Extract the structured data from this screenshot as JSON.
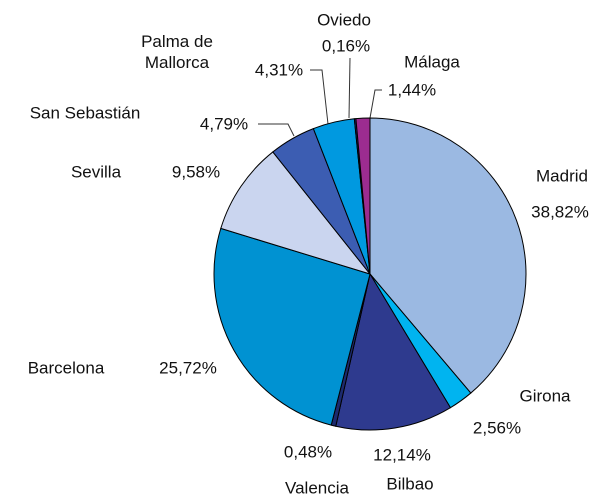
{
  "chart_data": {
    "type": "pie",
    "categories": [
      "Madrid",
      "Girona",
      "Bilbao",
      "Valencia",
      "Barcelona",
      "Sevilla",
      "San Sebastián",
      "Palma de Mallorca",
      "Oviedo",
      "Málaga"
    ],
    "values": [
      38.82,
      2.56,
      12.14,
      0.48,
      25.72,
      9.58,
      4.79,
      4.31,
      0.16,
      1.44
    ],
    "value_labels": [
      "38,82%",
      "2,56%",
      "12,14%",
      "0,48%",
      "25,72%",
      "9,58%",
      "4,79%",
      "4,31%",
      "0,16%",
      "1,44%"
    ],
    "colors": [
      "#9bb9e2",
      "#00b4f0",
      "#2e3a8e",
      "#1c2a6e",
      "#0092d2",
      "#cad5ef",
      "#3c5db2",
      "#0099e0",
      "#1c2a82",
      "#9c2c90"
    ]
  }
}
